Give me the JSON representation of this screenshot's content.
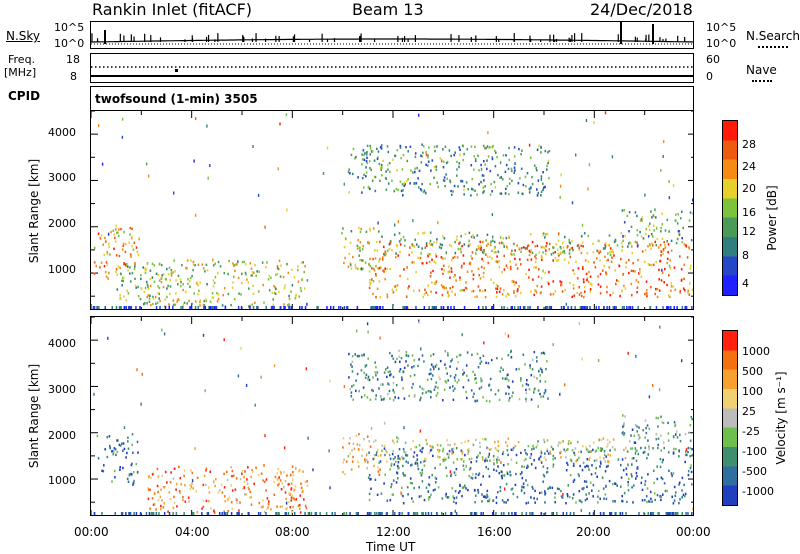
{
  "header": {
    "station": "Rankin Inlet (fitACF)",
    "beam": "Beam 13",
    "date": "24/Dec/2018"
  },
  "nsky_panel": {
    "left_label": "N.Sky",
    "right_label": "N.Search",
    "left_ticks": [
      "10^5",
      "10^0"
    ],
    "right_ticks": [
      "10^5",
      "10^0"
    ]
  },
  "freq_panel": {
    "left_label_1": "Freq.",
    "left_label_2": "[MHz]",
    "right_label": "Nave",
    "left_ticks": [
      "18",
      "8"
    ],
    "right_ticks": [
      "60",
      "0"
    ]
  },
  "cpid": {
    "label": "CPID",
    "value": "twofsound (1-min) 3505"
  },
  "chart_data": [
    {
      "type": "heatmap",
      "parameter": "power",
      "ylabel": "Slant Range [km]",
      "xlabel": "",
      "x_ticks": [
        "00:00",
        "04:00",
        "08:00",
        "12:00",
        "16:00",
        "20:00",
        "00:00"
      ],
      "y_ticks": [
        "1000",
        "2000",
        "3000",
        "4000"
      ],
      "xlim_hours": [
        0,
        24
      ],
      "ylim_km": [
        180,
        4500
      ],
      "colorbar": {
        "label": "Power [dB]",
        "ticks": [
          "4",
          "8",
          "12",
          "16",
          "20",
          "24",
          "28"
        ],
        "colors": [
          "#1f1fff",
          "#2447c9",
          "#2f7f7f",
          "#4b9b58",
          "#7cc23c",
          "#e6d02c",
          "#f58a16",
          "#ee5a10",
          "#ff1a0a"
        ]
      },
      "regions": [
        {
          "t0": 0.1,
          "t1": 1.9,
          "r0": 900,
          "r1": 2000,
          "level": 0.72
        },
        {
          "t0": 1.0,
          "t1": 3.0,
          "r0": 350,
          "r1": 1200,
          "level": 0.45
        },
        {
          "t0": 2.2,
          "t1": 8.6,
          "r0": 300,
          "r1": 1300,
          "level": 0.55
        },
        {
          "t0": 9.9,
          "t1": 11.5,
          "r0": 1100,
          "r1": 2000,
          "level": 0.55
        },
        {
          "t0": 10.2,
          "t1": 18.2,
          "r0": 2700,
          "r1": 3800,
          "level": 0.35
        },
        {
          "t0": 11.0,
          "t1": 23.9,
          "r0": 500,
          "r1": 1700,
          "level": 0.78
        },
        {
          "t0": 11.5,
          "t1": 21.5,
          "r0": 1400,
          "r1": 1900,
          "level": 0.45
        },
        {
          "t0": 21.0,
          "t1": 23.9,
          "r0": 1600,
          "r1": 2400,
          "level": 0.4
        }
      ]
    },
    {
      "type": "heatmap",
      "parameter": "velocity",
      "ylabel": "Slant Range [km]",
      "xlabel": "Time UT",
      "x_ticks": [
        "00:00",
        "04:00",
        "08:00",
        "12:00",
        "16:00",
        "20:00",
        "00:00"
      ],
      "y_ticks": [
        "1000",
        "2000",
        "3000",
        "4000"
      ],
      "xlim_hours": [
        0,
        24
      ],
      "ylim_km": [
        180,
        4500
      ],
      "colorbar": {
        "label": "Velocity [m s⁻¹]",
        "ticks": [
          "1000",
          "500",
          "100",
          "25",
          "-25",
          "-100",
          "-500",
          "-1000"
        ],
        "colors": [
          "#1f3fbf",
          "#2f6f9f",
          "#3f8f6f",
          "#6fbf4f",
          "#bcbcbc",
          "#f0d070",
          "#f5a030",
          "#f57010",
          "#ff2010"
        ]
      },
      "regions": [
        {
          "t0": 0.1,
          "t1": 1.9,
          "r0": 900,
          "r1": 2000,
          "level": 0.2
        },
        {
          "t0": 2.2,
          "t1": 8.6,
          "r0": 300,
          "r1": 1300,
          "level": 0.75
        },
        {
          "t0": 9.9,
          "t1": 11.5,
          "r0": 1100,
          "r1": 2000,
          "level": 0.65
        },
        {
          "t0": 10.2,
          "t1": 18.2,
          "r0": 2700,
          "r1": 3800,
          "level": 0.25
        },
        {
          "t0": 11.0,
          "t1": 23.9,
          "r0": 500,
          "r1": 1700,
          "level": 0.18
        },
        {
          "t0": 11.5,
          "t1": 21.5,
          "r0": 1400,
          "r1": 1900,
          "level": 0.55
        },
        {
          "t0": 21.0,
          "t1": 23.9,
          "r0": 1600,
          "r1": 2400,
          "level": 0.3
        }
      ]
    }
  ]
}
